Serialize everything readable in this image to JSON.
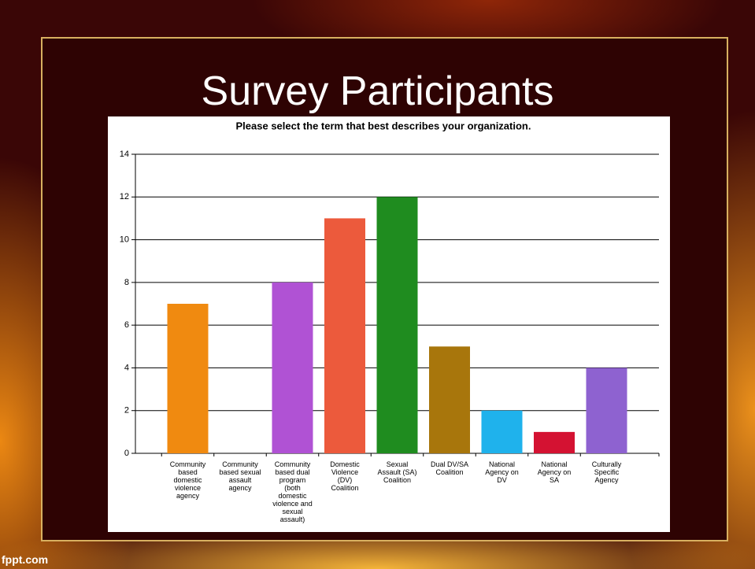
{
  "slide_title": "Survey Participants",
  "footer": "fppt.com",
  "chart_data": {
    "type": "bar",
    "title": "Please select the term that best describes your organization.",
    "categories": [
      "Community based domestic violence agency",
      "Community based sexual assault agency",
      "Community based dual program (both domestic violence and sexual assault)",
      "Domestic Violence (DV) Coalition",
      "Sexual Assault (SA) Coalition",
      "Dual DV/SA Coalition",
      "National Agency on DV",
      "National Agency on SA",
      "Culturally Specific Agency"
    ],
    "values": [
      7,
      0,
      8,
      11,
      12,
      5,
      2,
      1,
      4
    ],
    "colors": [
      "#f08a10",
      "#999999",
      "#b052d4",
      "#ec5a3c",
      "#1f8c1f",
      "#a8760c",
      "#1fb2ec",
      "#d41232",
      "#8e62d0"
    ],
    "ylim": [
      0,
      14
    ],
    "yticks": [
      0,
      2,
      4,
      6,
      8,
      10,
      12,
      14
    ],
    "grid": true
  }
}
